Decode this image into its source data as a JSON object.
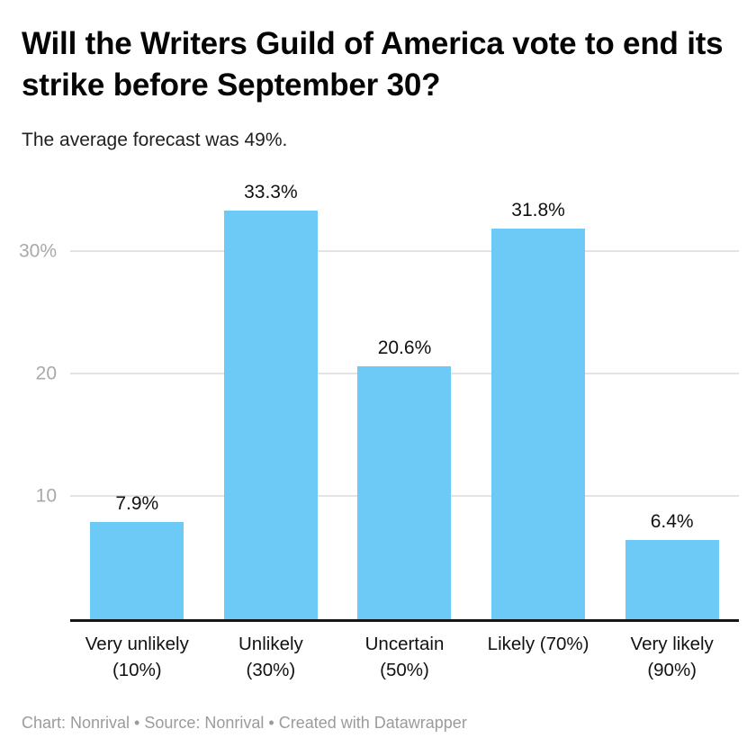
{
  "chart_data": {
    "type": "bar",
    "title": "Will the Writers Guild of America vote to end its strike before September 30?",
    "subtitle": "The average forecast was 49%.",
    "categories": [
      "Very unlikely\n(10%)",
      "Unlikely\n(30%)",
      "Uncertain\n(50%)",
      "Likely (70%)",
      "Very likely\n(90%)"
    ],
    "values": [
      7.9,
      33.3,
      20.6,
      31.8,
      6.4
    ],
    "value_labels": [
      "7.9%",
      "33.3%",
      "20.6%",
      "31.8%",
      "6.4%"
    ],
    "y_ticks": [
      {
        "value": 10,
        "label": "10"
      },
      {
        "value": 20,
        "label": "20"
      },
      {
        "value": 30,
        "label": "30%"
      }
    ],
    "ylim": [
      0,
      36.7
    ],
    "xlabel": "",
    "ylabel": "",
    "grid": true,
    "legend": "none",
    "footer": "Chart: Nonrival • Source: Nonrival • Created with Datawrapper"
  },
  "colors": {
    "bar": "#6dc9f6",
    "gridline": "#e3e3e3",
    "axis_line": "#161616",
    "tick_label": "#a9a9a9",
    "footer_text": "#9b9b9b"
  }
}
